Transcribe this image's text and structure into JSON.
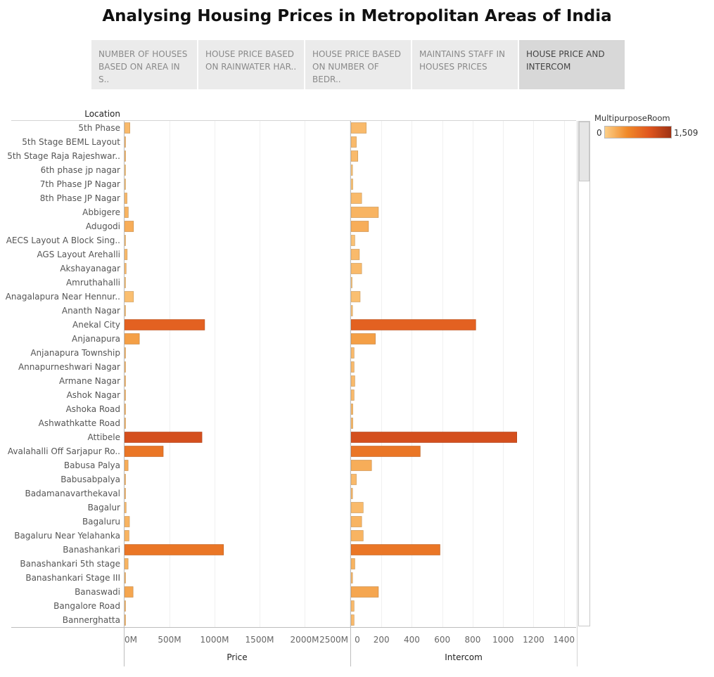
{
  "title": "Analysing Housing Prices in Metropolitan Areas of India",
  "tabs": [
    {
      "label": "NUMBER OF HOUSES BASED ON AREA IN S..",
      "active": false
    },
    {
      "label": "HOUSE PRICE BASED ON RAINWATER HAR..",
      "active": false
    },
    {
      "label": "HOUSE PRICE BASED ON NUMBER OF BEDR..",
      "active": false
    },
    {
      "label": "MAINTAINS STAFF IN HOUSES PRICES",
      "active": false
    },
    {
      "label": "HOUSE PRICE AND INTERCOM",
      "active": true
    }
  ],
  "legend": {
    "title": "MultipurposeRoom",
    "min_label": "0",
    "max_label": "1,509",
    "min": 0,
    "max": 1509,
    "colors": [
      "#fdcf87",
      "#f08a2a",
      "#e0561f",
      "#9e3214"
    ]
  },
  "chart_data": {
    "type": "bar",
    "orientation": "horizontal",
    "row_header": "Location",
    "categories": [
      "5th Phase",
      "5th Stage BEML Layout",
      "5th Stage Raja Rajeshwar..",
      "6th phase jp nagar",
      "7th Phase JP Nagar",
      "8th Phase JP Nagar",
      "Abbigere",
      "Adugodi",
      "AECS Layout A Block Sing..",
      "AGS Layout Arehalli",
      "Akshayanagar",
      "Amruthahalli",
      "Anagalapura Near Hennur..",
      "Ananth Nagar",
      "Anekal City",
      "Anjanapura",
      "Anjanapura Township",
      "Annapurneshwari Nagar",
      "Armane Nagar",
      "Ashok Nagar",
      "Ashoka Road",
      "Ashwathkatte Road",
      "Attibele",
      "Avalahalli Off Sarjapur Ro..",
      "Babusa Palya",
      "Babusabpalya",
      "Badamanavarthekaval",
      "Bagalur",
      "Bagaluru",
      "Bagaluru Near Yelahanka",
      "Banashankari",
      "Banashankari 5th stage",
      "Banashankari Stage III",
      "Banaswadi",
      "Bangalore Road",
      "Bannerghatta"
    ],
    "series": [
      {
        "name": "Price",
        "xlabel": "Price",
        "ticks": [
          "0M",
          "500M",
          "1000M",
          "1500M",
          "2000M",
          "2500M"
        ],
        "tick_values": [
          0,
          500,
          1000,
          1500,
          2000,
          2500
        ],
        "xlim": [
          0,
          2500
        ],
        "unit": "M",
        "values": [
          60,
          10,
          12,
          2,
          6,
          28,
          42,
          100,
          4,
          30,
          18,
          2,
          100,
          2,
          890,
          165,
          2,
          6,
          10,
          2,
          2,
          2,
          860,
          430,
          40,
          10,
          4,
          18,
          55,
          50,
          1100,
          40,
          2,
          95,
          10,
          8
        ]
      },
      {
        "name": "Intercom",
        "xlabel": "Intercom",
        "ticks": [
          "0",
          "200",
          "400",
          "600",
          "800",
          "1000",
          "1200",
          "1400"
        ],
        "tick_values": [
          0,
          200,
          400,
          600,
          800,
          1000,
          1200,
          1400
        ],
        "xlim": [
          0,
          1480
        ],
        "values": [
          100,
          35,
          45,
          10,
          12,
          70,
          180,
          115,
          25,
          55,
          70,
          5,
          60,
          10,
          820,
          160,
          20,
          20,
          25,
          20,
          12,
          12,
          1090,
          455,
          135,
          35,
          10,
          80,
          70,
          80,
          585,
          25,
          10,
          180,
          20,
          20
        ]
      }
    ],
    "color_values": [
      150,
      150,
      150,
      80,
      80,
      150,
      200,
      250,
      100,
      150,
      150,
      80,
      120,
      100,
      900,
      350,
      150,
      150,
      150,
      150,
      150,
      150,
      1100,
      700,
      250,
      150,
      150,
      150,
      200,
      200,
      700,
      200,
      150,
      300,
      150,
      150
    ],
    "grid": true
  }
}
